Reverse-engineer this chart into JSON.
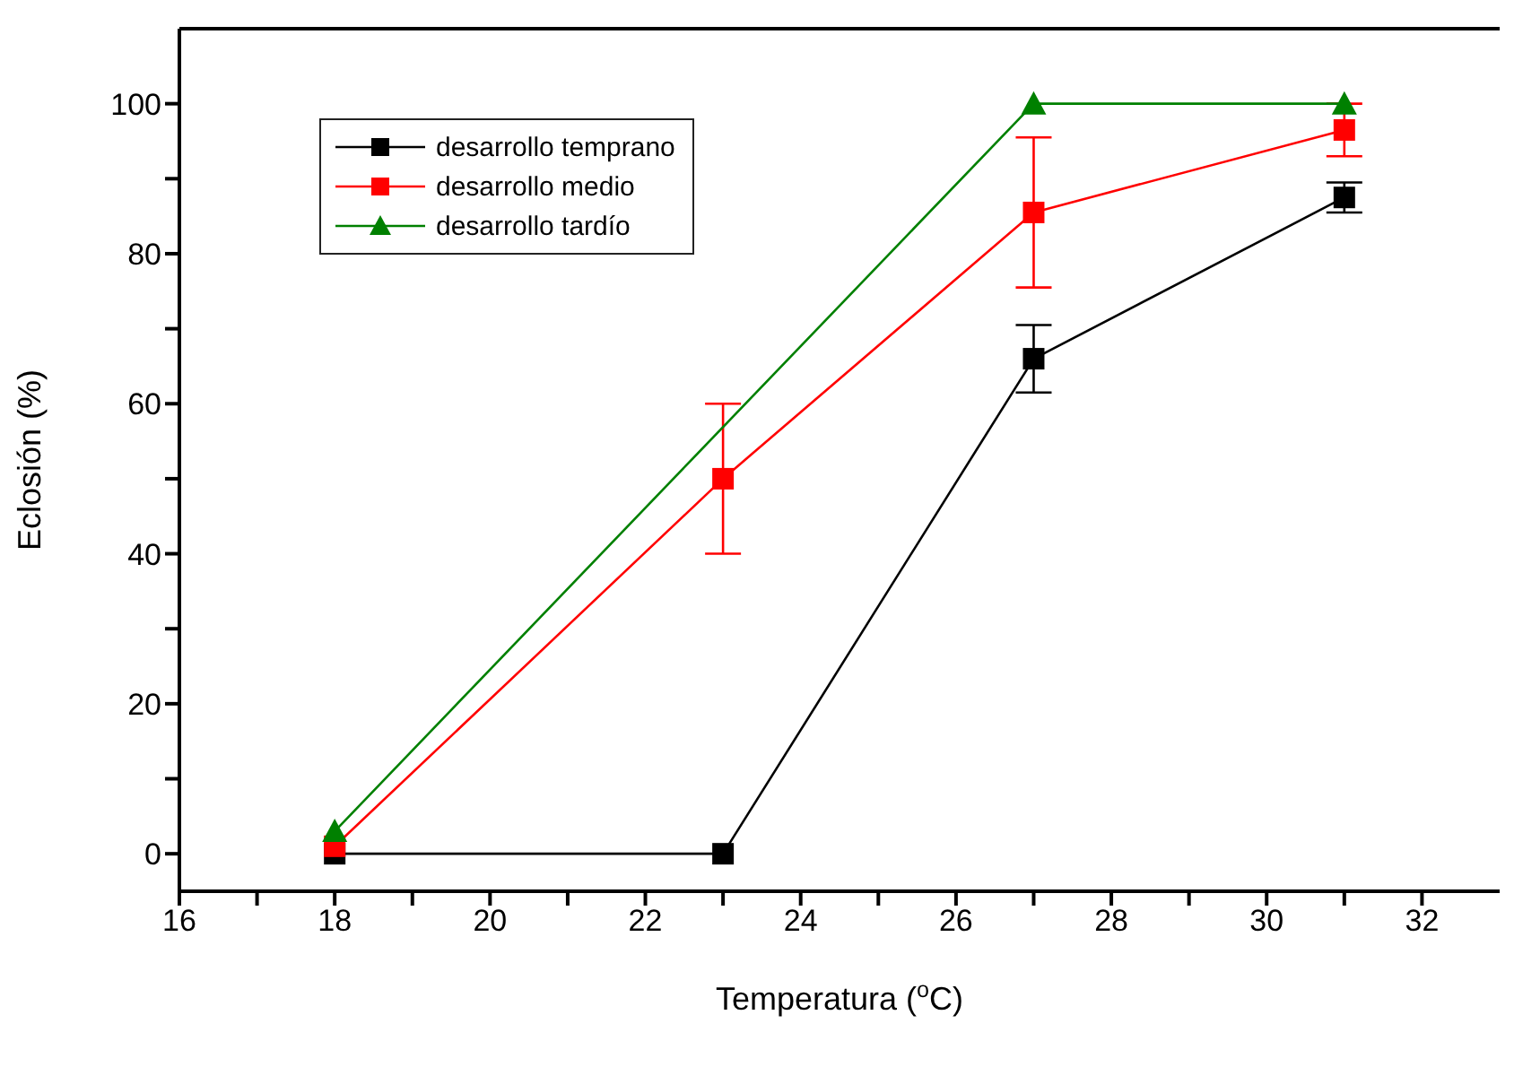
{
  "chart_data": {
    "type": "line",
    "xlabel": "Temperatura ($^{o}$C)",
    "ylabel": "Eclosión (%)",
    "xlim": [
      16,
      33
    ],
    "ylim": [
      -5,
      110
    ],
    "xticks": [
      16,
      {
        "value": 17,
        "label": null
      },
      18,
      {
        "value": 19,
        "label": null
      },
      20,
      {
        "value": 21,
        "label": null
      },
      22,
      {
        "value": 23,
        "label": null
      },
      24,
      {
        "value": 25,
        "label": null
      },
      26,
      {
        "value": 27,
        "label": null
      },
      28,
      {
        "value": 29,
        "label": null
      },
      30,
      {
        "value": 31,
        "label": null
      },
      32
    ],
    "yticks": [
      0,
      {
        "value": 10,
        "label": null
      },
      20,
      {
        "value": 30,
        "label": null
      },
      40,
      {
        "value": 50,
        "label": null
      },
      60,
      {
        "value": 70,
        "label": null
      },
      80,
      {
        "value": 90,
        "label": null
      },
      100
    ],
    "legend": "top left",
    "line_style": "solid",
    "series": [
      {
        "name": "desarrollo temprano",
        "color": "#000000",
        "marker": "square",
        "x": [
          18,
          23,
          27,
          31
        ],
        "values": [
          0,
          0,
          66,
          87.5
        ],
        "errors": [
          null,
          null,
          4.5,
          2
        ]
      },
      {
        "name": "desarrollo medio",
        "color": "#ff0000",
        "marker": "square",
        "x": [
          18,
          23,
          27,
          31
        ],
        "values": [
          1,
          50,
          85.5,
          96.5
        ],
        "errors": [
          null,
          10,
          10,
          3.5
        ]
      },
      {
        "name": "desarrollo tardío",
        "color": "#008000",
        "marker": "triangle",
        "x": [
          18,
          27,
          31
        ],
        "values": [
          3,
          100,
          100
        ]
      }
    ]
  }
}
